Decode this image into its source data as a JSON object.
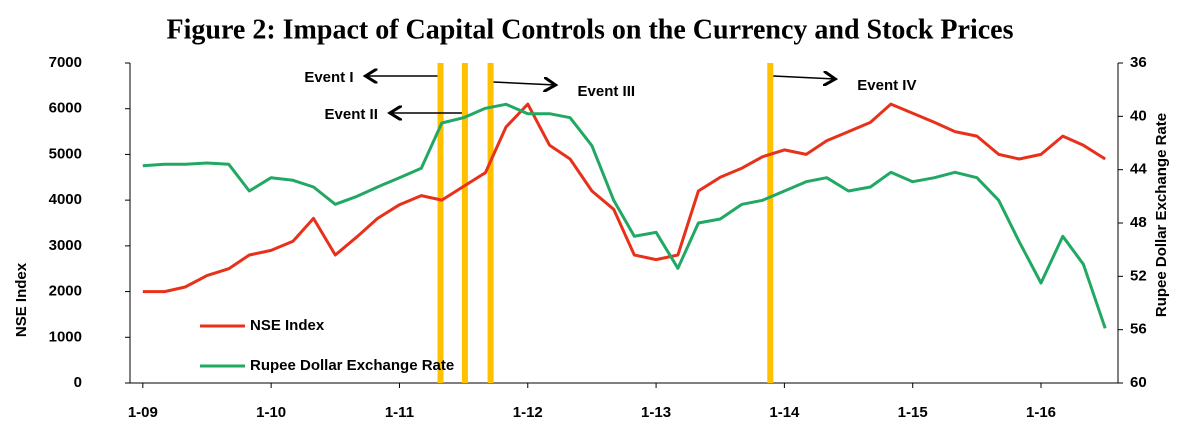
{
  "chart_data": {
    "type": "line",
    "title": "Figure 2: Impact of Capital Controls on the Currency and Stock Prices",
    "y_label": "NSE Index",
    "y2_label": "Rupee Dollar Exchange Rate",
    "x": [
      2009,
      2009.17,
      2009.33,
      2009.5,
      2009.67,
      2009.83,
      2010,
      2010.17,
      2010.33,
      2010.5,
      2010.67,
      2010.83,
      2011,
      2011.17,
      2011.33,
      2011.5,
      2011.67,
      2011.83,
      2012,
      2012.17,
      2012.33,
      2012.5,
      2012.67,
      2012.83,
      2013,
      2013.17,
      2013.33,
      2013.5,
      2013.67,
      2013.83,
      2014,
      2014.17,
      2014.33,
      2014.5,
      2014.67,
      2014.83,
      2015,
      2015.17,
      2015.33,
      2015.5,
      2015.67,
      2015.83,
      2016,
      2016.17,
      2016.33,
      2016.5
    ],
    "series": [
      {
        "name": "NSE Index",
        "color": "#e8311a",
        "values": [
          2000,
          2000,
          2100,
          2350,
          2500,
          2800,
          2900,
          3100,
          3600,
          2800,
          3200,
          3600,
          3900,
          4100,
          4000,
          4300,
          4600,
          5600,
          6100,
          5200,
          4900,
          4200,
          3800,
          2800,
          2700,
          2800,
          4200,
          4500,
          4700,
          4950,
          5100,
          5000,
          5300,
          5500,
          5700,
          6100,
          5900,
          5700,
          5500,
          5400,
          5000,
          4900,
          5000,
          5400,
          5200,
          4900
        ]
      },
      {
        "name": "Rupee Dollar Exchange Rate",
        "color": "#21a863",
        "axis": "y2",
        "values": [
          43.7,
          43.6,
          43.6,
          43.5,
          43.6,
          45.6,
          44.6,
          44.8,
          45.3,
          46.6,
          46.0,
          45.3,
          44.6,
          43.9,
          40.5,
          40.1,
          39.4,
          39.1,
          39.8,
          39.8,
          40.1,
          42.2,
          46.3,
          49.0,
          48.7,
          51.4,
          48.0,
          47.7,
          46.6,
          46.3,
          45.6,
          44.9,
          44.6,
          45.6,
          45.3,
          44.2,
          44.9,
          44.6,
          44.2,
          44.6,
          46.3,
          49.4,
          52.5,
          49.0,
          51.1,
          55.9
        ]
      }
    ],
    "xlim": [
      2008.9,
      2016.6
    ],
    "xticks": [
      {
        "value": 2009,
        "label": "1-09"
      },
      {
        "value": 2010,
        "label": "1-10"
      },
      {
        "value": 2011,
        "label": "1-11"
      },
      {
        "value": 2012,
        "label": "1-12"
      },
      {
        "value": 2013,
        "label": "1-13"
      },
      {
        "value": 2014,
        "label": "1-14"
      },
      {
        "value": 2015,
        "label": "1-15"
      },
      {
        "value": 2016,
        "label": "1-16"
      }
    ],
    "ylim": [
      0,
      7000
    ],
    "yticks": [
      0,
      1000,
      2000,
      3000,
      4000,
      5000,
      6000,
      7000
    ],
    "y2lim": [
      60,
      36
    ],
    "y2ticks": [
      60,
      56,
      52,
      48,
      44,
      40,
      36
    ],
    "legend": "lower left",
    "event_color": "#ffc000",
    "events": [
      {
        "x": 2011.32,
        "label": "Event I",
        "direction": "left"
      },
      {
        "x": 2011.51,
        "label": "Event II",
        "direction": "left"
      },
      {
        "x": 2011.71,
        "label": "Event III",
        "direction": "right"
      },
      {
        "x": 2013.89,
        "label": "Event IV",
        "direction": "right"
      }
    ]
  }
}
